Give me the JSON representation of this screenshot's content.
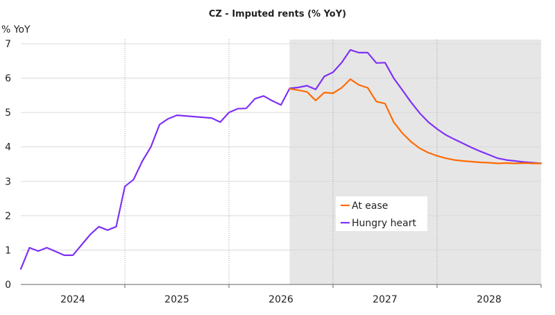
{
  "chart_data": {
    "type": "line",
    "title": "CZ - Imputed rents (% YoY)",
    "ylabel": "% YoY",
    "xlabel": "",
    "ylim": [
      0,
      7
    ],
    "y_ticks": [
      0,
      1,
      2,
      3,
      4,
      5,
      6,
      7
    ],
    "xlim": [
      2023.5,
      2028.5
    ],
    "x_tick_labels": [
      "2024",
      "2025",
      "2026",
      "2027",
      "2028"
    ],
    "x_tick_positions": [
      2024.0,
      2025.0,
      2026.0,
      2027.0,
      2028.0
    ],
    "year_dividers": [
      2024.5,
      2025.5,
      2026.5,
      2027.5
    ],
    "grid": "horizontal",
    "forecast_shading_start": 2026.083,
    "shading_color": "#e6e6e6",
    "legend_position": "center-right",
    "series": [
      {
        "name": "At ease",
        "color": "#ff6a00",
        "x": [
          2026.083,
          2026.167,
          2026.25,
          2026.333,
          2026.417,
          2026.5,
          2026.583,
          2026.667,
          2026.75,
          2026.833,
          2026.917,
          2027.0,
          2027.083,
          2027.167,
          2027.25,
          2027.333,
          2027.417,
          2027.5,
          2027.583,
          2027.667,
          2027.75,
          2027.833,
          2027.917,
          2028.0,
          2028.083,
          2028.167,
          2028.25,
          2028.333,
          2028.417,
          2028.5
        ],
        "y": [
          5.69,
          5.65,
          5.6,
          5.35,
          5.58,
          5.56,
          5.72,
          5.97,
          5.8,
          5.72,
          5.32,
          5.26,
          4.72,
          4.4,
          4.15,
          3.96,
          3.83,
          3.74,
          3.67,
          3.62,
          3.59,
          3.57,
          3.55,
          3.54,
          3.52,
          3.53,
          3.52,
          3.53,
          3.52,
          3.52
        ]
      },
      {
        "name": "Hungry heart",
        "color": "#7f2ff5",
        "x": [
          2023.5,
          2023.583,
          2023.667,
          2023.75,
          2023.833,
          2023.917,
          2024.0,
          2024.083,
          2024.167,
          2024.25,
          2024.333,
          2024.417,
          2024.5,
          2024.583,
          2024.667,
          2024.75,
          2024.833,
          2024.917,
          2025.0,
          2025.083,
          2025.167,
          2025.25,
          2025.333,
          2025.417,
          2025.5,
          2025.583,
          2025.667,
          2025.75,
          2025.833,
          2025.917,
          2026.0,
          2026.083,
          2026.167,
          2026.25,
          2026.333,
          2026.417,
          2026.5,
          2026.583,
          2026.667,
          2026.75,
          2026.833,
          2026.917,
          2027.0,
          2027.083,
          2027.167,
          2027.25,
          2027.333,
          2027.417,
          2027.5,
          2027.583,
          2027.667,
          2027.75,
          2027.833,
          2027.917,
          2028.0,
          2028.083,
          2028.167,
          2028.25,
          2028.333,
          2028.417,
          2028.5
        ],
        "y": [
          0.45,
          1.07,
          0.97,
          1.07,
          0.96,
          0.85,
          0.85,
          1.15,
          1.45,
          1.68,
          1.58,
          1.68,
          2.85,
          3.05,
          3.58,
          4.0,
          4.65,
          4.82,
          4.92,
          4.9,
          4.88,
          4.86,
          4.84,
          4.72,
          5.0,
          5.11,
          5.12,
          5.4,
          5.48,
          5.34,
          5.22,
          5.7,
          5.73,
          5.78,
          5.67,
          6.05,
          6.17,
          6.45,
          6.82,
          6.74,
          6.74,
          6.44,
          6.45,
          6.0,
          5.65,
          5.3,
          4.98,
          4.72,
          4.52,
          4.35,
          4.22,
          4.1,
          3.98,
          3.87,
          3.77,
          3.67,
          3.62,
          3.59,
          3.56,
          3.54,
          3.52
        ]
      }
    ]
  }
}
